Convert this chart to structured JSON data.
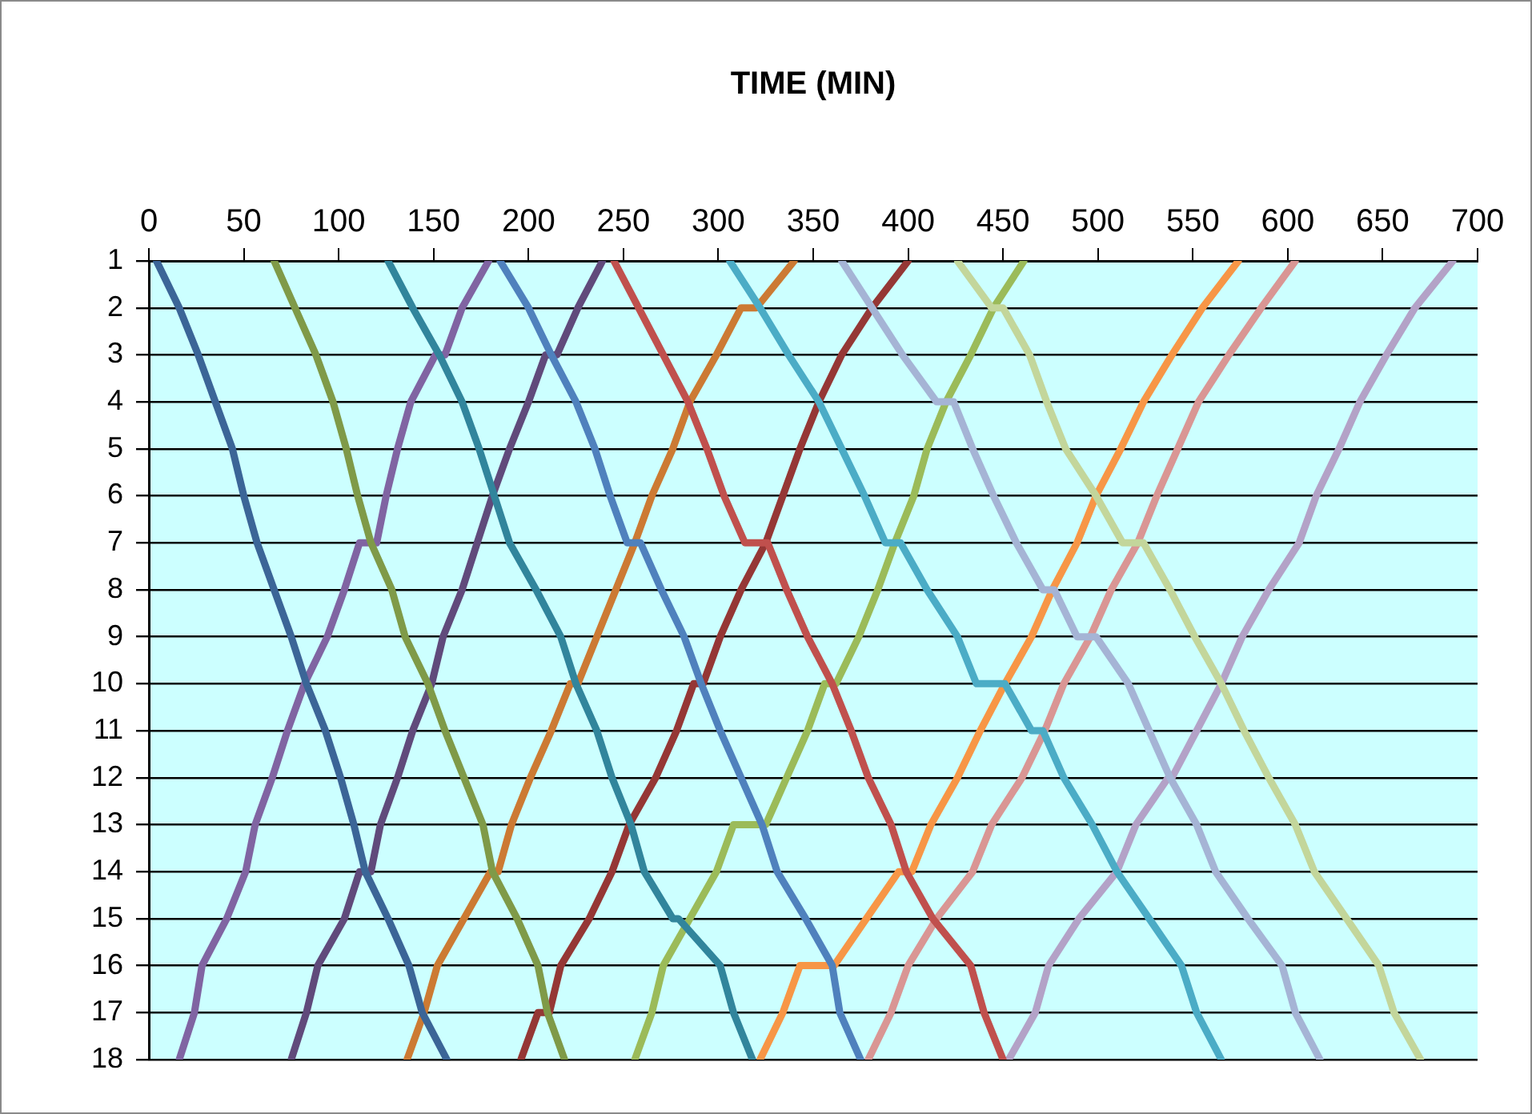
{
  "chart_data": {
    "type": "line",
    "xlabel": "TIME (MIN)",
    "xlim": [
      0,
      700
    ],
    "xticks": [
      0,
      50,
      100,
      150,
      200,
      250,
      300,
      350,
      400,
      450,
      500,
      550,
      600,
      650,
      700
    ],
    "ylim": [
      18,
      1
    ],
    "yticks": [
      1,
      2,
      3,
      4,
      5,
      6,
      7,
      8,
      9,
      10,
      11,
      12,
      13,
      14,
      15,
      16,
      17,
      18
    ],
    "grid": "y",
    "legend": false,
    "marker": "none",
    "series": [
      {
        "color": "#3b6597",
        "x": [
          4,
          16,
          26,
          35,
          44,
          50,
          57,
          66,
          75,
          83,
          93,
          101,
          108,
          114,
          126,
          137,
          144,
          157
        ],
        "values": [
          1,
          2,
          3,
          4,
          5,
          6,
          7,
          8,
          9,
          10,
          11,
          12,
          13,
          14,
          15,
          16,
          17,
          18
        ]
      },
      {
        "color": "#7f9a48",
        "x": [
          66,
          77,
          88,
          97,
          104,
          110,
          117,
          128,
          135,
          147,
          156,
          166,
          176,
          181,
          194,
          205,
          210,
          219
        ],
        "values": [
          1,
          2,
          3,
          4,
          5,
          6,
          7,
          8,
          9,
          10,
          11,
          12,
          13,
          14,
          15,
          16,
          17,
          18
        ]
      },
      {
        "color": "#31859c",
        "x": [
          126,
          139,
          153,
          165,
          174,
          182,
          190,
          204,
          217,
          225,
          236,
          244,
          254,
          261,
          276,
          279,
          301,
          308,
          318
        ],
        "values": [
          1,
          2,
          3,
          4,
          5,
          6,
          7,
          8,
          9,
          10,
          11,
          12,
          13,
          14,
          15,
          15,
          16,
          17,
          18
        ]
      },
      {
        "color": "#4f81bd",
        "x": [
          185,
          200,
          212,
          225,
          235,
          243,
          252,
          259,
          270,
          282,
          291,
          301,
          312,
          323,
          331,
          346,
          360,
          364,
          375
        ],
        "values": [
          1,
          2,
          3,
          4,
          5,
          6,
          7,
          7,
          8,
          9,
          10,
          11,
          12,
          13,
          14,
          15,
          16,
          17,
          18
        ]
      },
      {
        "color": "#c0504d",
        "x": [
          245,
          258,
          271,
          284,
          294,
          303,
          314,
          326,
          336,
          347,
          360,
          370,
          379,
          391,
          399,
          413,
          433,
          440,
          450
        ],
        "values": [
          1,
          2,
          3,
          4,
          5,
          6,
          7,
          7,
          8,
          9,
          10,
          11,
          12,
          13,
          14,
          15,
          16,
          17,
          18
        ]
      },
      {
        "color": "#4bacc6",
        "x": [
          306,
          322,
          337,
          353,
          365,
          377,
          388,
          396,
          410,
          426,
          436,
          451,
          465,
          471,
          482,
          497,
          510,
          527,
          544,
          552,
          565
        ],
        "values": [
          1,
          2,
          3,
          4,
          5,
          6,
          7,
          7,
          8,
          9,
          10,
          10,
          11,
          11,
          12,
          13,
          14,
          15,
          16,
          17,
          18
        ]
      },
      {
        "color": "#a5b4d5",
        "x": [
          365,
          381,
          397,
          415,
          424,
          434,
          445,
          457,
          471,
          477,
          489,
          499,
          516,
          527,
          538,
          552,
          562,
          579,
          597,
          604,
          617
        ],
        "values": [
          1,
          2,
          3,
          4,
          4,
          5,
          6,
          7,
          8,
          8,
          9,
          9,
          10,
          11,
          12,
          13,
          14,
          15,
          16,
          17,
          18
        ]
      },
      {
        "color": "#c3d69b",
        "x": [
          426,
          444,
          450,
          464,
          473,
          483,
          499,
          513,
          524,
          538,
          551,
          565,
          577,
          590,
          604,
          614,
          631,
          648,
          656,
          670
        ],
        "values": [
          1,
          2,
          2,
          3,
          4,
          5,
          6,
          7,
          7,
          8,
          9,
          10,
          11,
          12,
          13,
          14,
          15,
          16,
          17,
          18
        ]
      },
      {
        "color": "#8064a2",
        "x": [
          16,
          24,
          28,
          41,
          51,
          56,
          65,
          73,
          82,
          94,
          103,
          111,
          120,
          125,
          131,
          138,
          151,
          156,
          165,
          179
        ],
        "values": [
          18,
          17,
          16,
          15,
          14,
          13,
          12,
          11,
          10,
          9,
          8,
          7,
          7,
          6,
          5,
          4,
          3,
          3,
          2,
          1
        ]
      },
      {
        "color": "#604a7b",
        "x": [
          75,
          83,
          89,
          103,
          111,
          117,
          122,
          131,
          139,
          149,
          155,
          165,
          173,
          181,
          190,
          200,
          209,
          215,
          226,
          239
        ],
        "values": [
          18,
          17,
          16,
          15,
          14,
          14,
          13,
          12,
          11,
          10,
          9,
          8,
          7,
          6,
          5,
          4,
          3,
          3,
          2,
          1
        ]
      },
      {
        "color": "#cc7a33",
        "x": [
          136,
          145,
          152,
          166,
          180,
          184,
          191,
          201,
          212,
          222,
          226,
          236,
          246,
          256,
          265,
          276,
          285,
          299,
          312,
          320,
          340
        ],
        "values": [
          18,
          17,
          16,
          15,
          14,
          14,
          13,
          12,
          11,
          10,
          10,
          9,
          8,
          7,
          6,
          5,
          4,
          3,
          2,
          2,
          1
        ]
      },
      {
        "color": "#953735",
        "x": [
          196,
          205,
          211,
          217,
          232,
          244,
          253,
          267,
          278,
          287,
          292,
          301,
          312,
          325,
          334,
          343,
          353,
          365,
          381,
          400
        ],
        "values": [
          18,
          17,
          17,
          16,
          15,
          14,
          13,
          12,
          11,
          10,
          10,
          9,
          8,
          7,
          6,
          5,
          4,
          3,
          2,
          1
        ]
      },
      {
        "color": "#9bbb59",
        "x": [
          256,
          265,
          271,
          285,
          299,
          308,
          325,
          336,
          347,
          356,
          362,
          374,
          384,
          393,
          403,
          410,
          420,
          433,
          445,
          461
        ],
        "values": [
          18,
          17,
          16,
          15,
          14,
          13,
          13,
          12,
          11,
          10,
          10,
          9,
          8,
          7,
          6,
          5,
          4,
          3,
          2,
          1
        ]
      },
      {
        "color": "#f79646",
        "x": [
          322,
          334,
          343,
          361,
          378,
          395,
          402,
          412,
          426,
          438,
          451,
          465,
          476,
          489,
          499,
          512,
          524,
          539,
          555,
          574
        ],
        "values": [
          18,
          17,
          16,
          16,
          15,
          14,
          14,
          13,
          12,
          11,
          10,
          9,
          8,
          7,
          6,
          5,
          4,
          3,
          2,
          1
        ]
      },
      {
        "color": "#d99694",
        "x": [
          379,
          391,
          400,
          415,
          434,
          444,
          460,
          472,
          482,
          496,
          507,
          521,
          531,
          542,
          553,
          569,
          586,
          604
        ],
        "values": [
          18,
          17,
          16,
          15,
          14,
          13,
          12,
          11,
          10,
          9,
          8,
          7,
          6,
          5,
          4,
          3,
          2,
          1
        ]
      },
      {
        "color": "#b3a2c7",
        "x": [
          453,
          467,
          474,
          490,
          510,
          520,
          537,
          539,
          552,
          565,
          576,
          590,
          606,
          615,
          627,
          638,
          652,
          667,
          687
        ],
        "values": [
          18,
          17,
          16,
          15,
          14,
          13,
          12,
          12,
          11,
          10,
          9,
          8,
          7,
          6,
          5,
          4,
          3,
          2,
          1
        ]
      }
    ]
  }
}
